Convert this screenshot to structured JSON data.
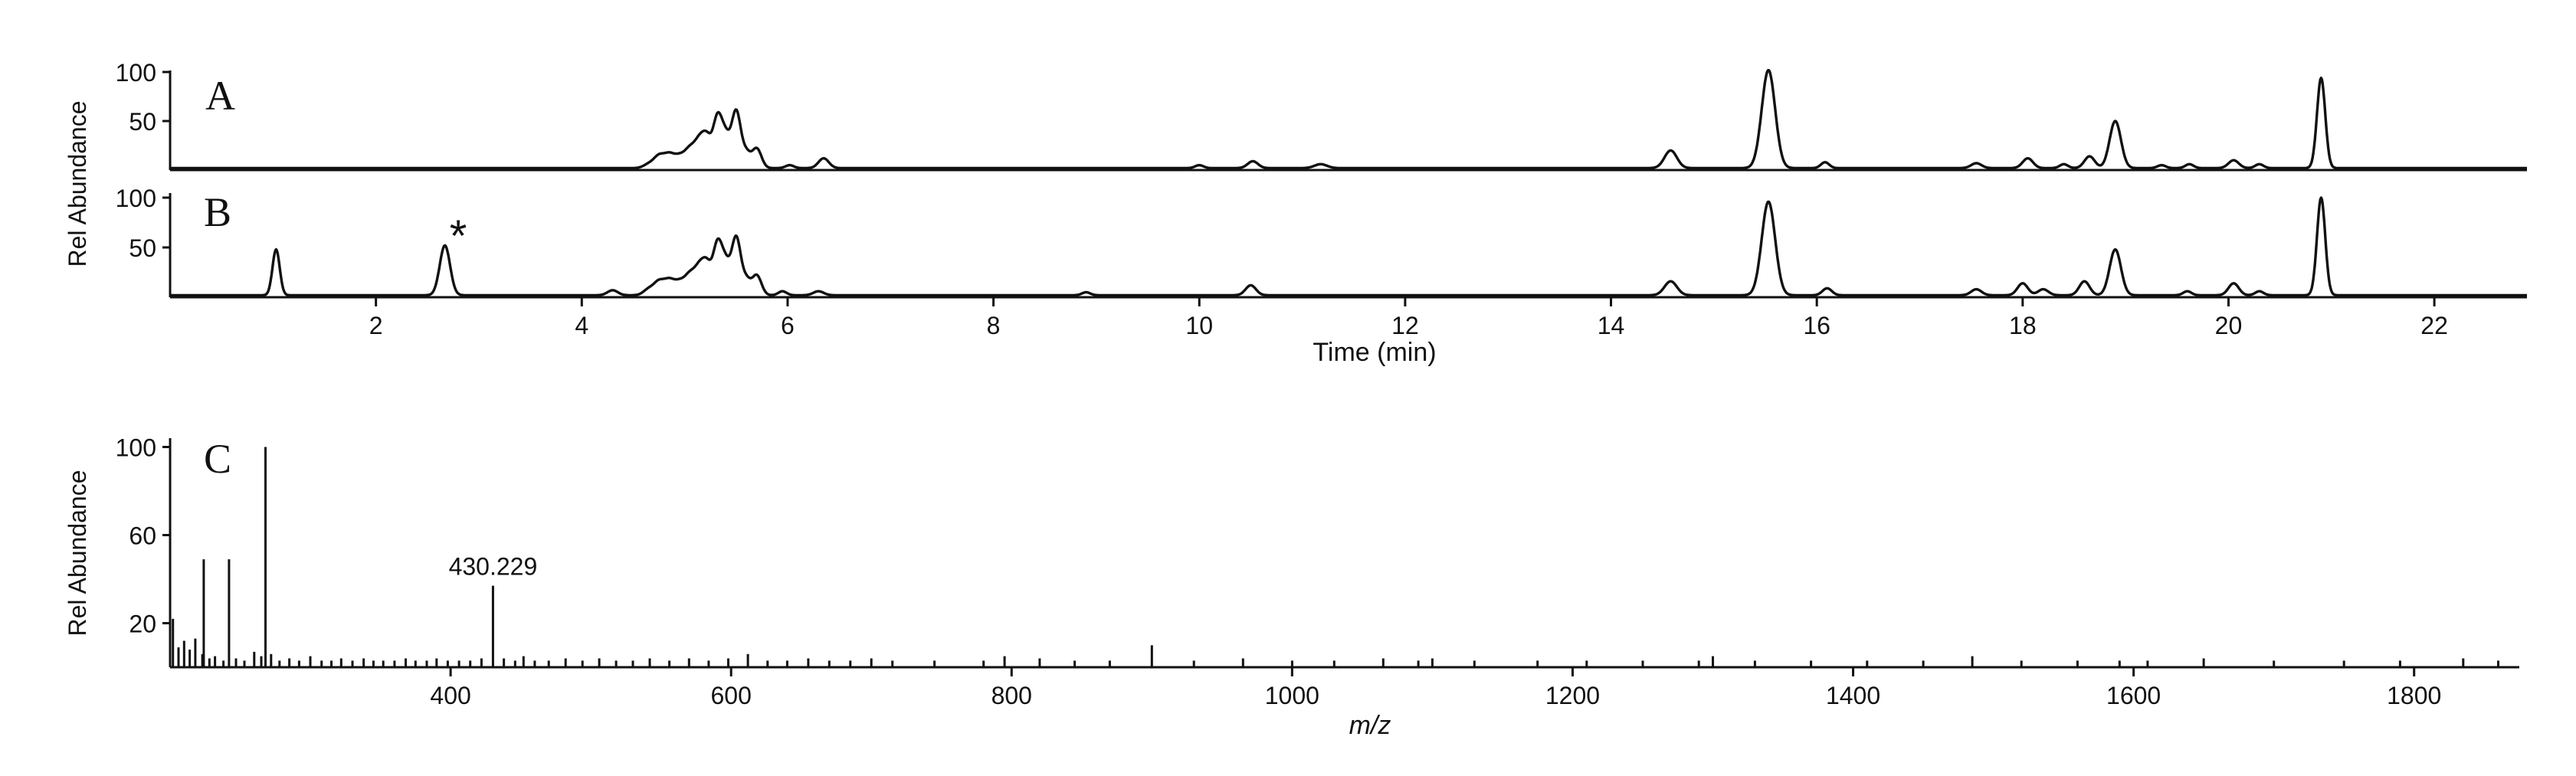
{
  "chart_data": [
    {
      "panel": "A",
      "type": "line",
      "ylabel": "Rel Abundance",
      "yticks": [
        50,
        100
      ],
      "xlim": [
        0,
        22.9
      ],
      "ylim": [
        0,
        105
      ],
      "series": [
        {
          "baseline": 2,
          "peaks": [
            {
              "x": 4.65,
              "y": 4,
              "w": 0.05
            },
            {
              "x": 4.75,
              "y": 12,
              "w": 0.05
            },
            {
              "x": 4.85,
              "y": 13,
              "w": 0.05
            },
            {
              "x": 4.95,
              "y": 11,
              "w": 0.05
            },
            {
              "x": 5.05,
              "y": 18,
              "w": 0.05
            },
            {
              "x": 5.15,
              "y": 28,
              "w": 0.05
            },
            {
              "x": 5.22,
              "y": 22,
              "w": 0.04
            },
            {
              "x": 5.32,
              "y": 52,
              "w": 0.045
            },
            {
              "x": 5.4,
              "y": 26,
              "w": 0.04
            },
            {
              "x": 5.5,
              "y": 58,
              "w": 0.045
            },
            {
              "x": 5.6,
              "y": 14,
              "w": 0.04
            },
            {
              "x": 5.7,
              "y": 20,
              "w": 0.045
            },
            {
              "x": 6.02,
              "y": 3,
              "w": 0.04
            },
            {
              "x": 6.35,
              "y": 10,
              "w": 0.05
            },
            {
              "x": 10.0,
              "y": 3,
              "w": 0.04
            },
            {
              "x": 10.52,
              "y": 7,
              "w": 0.05
            },
            {
              "x": 11.18,
              "y": 4,
              "w": 0.06
            },
            {
              "x": 14.58,
              "y": 18,
              "w": 0.06
            },
            {
              "x": 15.53,
              "y": 100,
              "w": 0.065
            },
            {
              "x": 16.08,
              "y": 6,
              "w": 0.04
            },
            {
              "x": 17.55,
              "y": 5,
              "w": 0.05
            },
            {
              "x": 18.05,
              "y": 10,
              "w": 0.05
            },
            {
              "x": 18.4,
              "y": 4,
              "w": 0.04
            },
            {
              "x": 18.65,
              "y": 12,
              "w": 0.05
            },
            {
              "x": 18.9,
              "y": 48,
              "w": 0.055
            },
            {
              "x": 19.35,
              "y": 3,
              "w": 0.04
            },
            {
              "x": 19.62,
              "y": 4,
              "w": 0.04
            },
            {
              "x": 20.05,
              "y": 8,
              "w": 0.05
            },
            {
              "x": 20.3,
              "y": 4,
              "w": 0.04
            },
            {
              "x": 20.9,
              "y": 92,
              "w": 0.04
            }
          ]
        }
      ]
    },
    {
      "panel": "B",
      "type": "line",
      "ylabel": "Rel Abundance",
      "yticks": [
        50,
        100
      ],
      "xlabel": "Time (min)",
      "xticks": [
        2,
        4,
        6,
        8,
        10,
        12,
        14,
        16,
        18,
        20,
        22
      ],
      "xlim": [
        0,
        22.9
      ],
      "ylim": [
        0,
        105
      ],
      "annotation": "*",
      "annotation_x": 2.67,
      "series": [
        {
          "baseline": 2,
          "peaks": [
            {
              "x": 1.03,
              "y": 46,
              "w": 0.035
            },
            {
              "x": 2.67,
              "y": 50,
              "w": 0.05
            },
            {
              "x": 4.3,
              "y": 5,
              "w": 0.05
            },
            {
              "x": 4.65,
              "y": 6,
              "w": 0.05
            },
            {
              "x": 4.75,
              "y": 13,
              "w": 0.05
            },
            {
              "x": 4.85,
              "y": 14,
              "w": 0.05
            },
            {
              "x": 4.95,
              "y": 12,
              "w": 0.05
            },
            {
              "x": 5.05,
              "y": 19,
              "w": 0.05
            },
            {
              "x": 5.15,
              "y": 28,
              "w": 0.05
            },
            {
              "x": 5.22,
              "y": 22,
              "w": 0.04
            },
            {
              "x": 5.32,
              "y": 52,
              "w": 0.045
            },
            {
              "x": 5.4,
              "y": 26,
              "w": 0.04
            },
            {
              "x": 5.5,
              "y": 58,
              "w": 0.045
            },
            {
              "x": 5.6,
              "y": 14,
              "w": 0.04
            },
            {
              "x": 5.7,
              "y": 20,
              "w": 0.045
            },
            {
              "x": 5.95,
              "y": 4,
              "w": 0.04
            },
            {
              "x": 6.3,
              "y": 4,
              "w": 0.05
            },
            {
              "x": 8.9,
              "y": 3,
              "w": 0.04
            },
            {
              "x": 10.5,
              "y": 10,
              "w": 0.05
            },
            {
              "x": 14.58,
              "y": 14,
              "w": 0.06
            },
            {
              "x": 15.53,
              "y": 94,
              "w": 0.065
            },
            {
              "x": 16.1,
              "y": 7,
              "w": 0.045
            },
            {
              "x": 17.55,
              "y": 6,
              "w": 0.05
            },
            {
              "x": 18.0,
              "y": 12,
              "w": 0.05
            },
            {
              "x": 18.2,
              "y": 6,
              "w": 0.05
            },
            {
              "x": 18.6,
              "y": 14,
              "w": 0.05
            },
            {
              "x": 18.9,
              "y": 46,
              "w": 0.055
            },
            {
              "x": 19.6,
              "y": 4,
              "w": 0.04
            },
            {
              "x": 20.05,
              "y": 12,
              "w": 0.05
            },
            {
              "x": 20.3,
              "y": 4,
              "w": 0.04
            },
            {
              "x": 20.9,
              "y": 98,
              "w": 0.04
            }
          ]
        }
      ]
    },
    {
      "panel": "C",
      "type": "bar",
      "ylabel": "Rel Abundance",
      "yticks": [
        20,
        60,
        100
      ],
      "xlabel": "m/z",
      "xticks": [
        400,
        600,
        800,
        1000,
        1200,
        1400,
        1600,
        1800
      ],
      "xlim": [
        200,
        1875
      ],
      "ylim": [
        0,
        104
      ],
      "annotation": "430.229",
      "annotation_x": 430.229,
      "annotation_y": 37,
      "peaks": [
        [
          202,
          22
        ],
        [
          206,
          9
        ],
        [
          210,
          12
        ],
        [
          214,
          8
        ],
        [
          218,
          13
        ],
        [
          223,
          6
        ],
        [
          228,
          4
        ],
        [
          224,
          49
        ],
        [
          232,
          5
        ],
        [
          238,
          3
        ],
        [
          242,
          49
        ],
        [
          247,
          4
        ],
        [
          253,
          3
        ],
        [
          260,
          7
        ],
        [
          265,
          5
        ],
        [
          268,
          100
        ],
        [
          272,
          6
        ],
        [
          278,
          3
        ],
        [
          285,
          4
        ],
        [
          292,
          3
        ],
        [
          300,
          5
        ],
        [
          308,
          3
        ],
        [
          315,
          3
        ],
        [
          322,
          4
        ],
        [
          330,
          3
        ],
        [
          338,
          4
        ],
        [
          345,
          3
        ],
        [
          352,
          3
        ],
        [
          360,
          3
        ],
        [
          368,
          4
        ],
        [
          375,
          3
        ],
        [
          383,
          3
        ],
        [
          390,
          4
        ],
        [
          398,
          3
        ],
        [
          406,
          3
        ],
        [
          414,
          3
        ],
        [
          422,
          4
        ],
        [
          430.229,
          37
        ],
        [
          438,
          4
        ],
        [
          446,
          3
        ],
        [
          452,
          5
        ],
        [
          460,
          3
        ],
        [
          470,
          3
        ],
        [
          482,
          4
        ],
        [
          494,
          3
        ],
        [
          506,
          4
        ],
        [
          518,
          3
        ],
        [
          530,
          3
        ],
        [
          542,
          4
        ],
        [
          556,
          3
        ],
        [
          570,
          4
        ],
        [
          584,
          3
        ],
        [
          598,
          4
        ],
        [
          612,
          6
        ],
        [
          626,
          3
        ],
        [
          640,
          3
        ],
        [
          655,
          4
        ],
        [
          670,
          3
        ],
        [
          685,
          3
        ],
        [
          700,
          4
        ],
        [
          715,
          3
        ],
        [
          745,
          3
        ],
        [
          780,
          3
        ],
        [
          795,
          5
        ],
        [
          820,
          4
        ],
        [
          845,
          3
        ],
        [
          870,
          3
        ],
        [
          900,
          10
        ],
        [
          930,
          3
        ],
        [
          965,
          4
        ],
        [
          1000,
          3
        ],
        [
          1030,
          3
        ],
        [
          1065,
          4
        ],
        [
          1090,
          3
        ],
        [
          1100,
          4
        ],
        [
          1130,
          3
        ],
        [
          1175,
          3
        ],
        [
          1210,
          3
        ],
        [
          1250,
          3
        ],
        [
          1290,
          3
        ],
        [
          1300,
          5
        ],
        [
          1330,
          3
        ],
        [
          1370,
          3
        ],
        [
          1410,
          3
        ],
        [
          1450,
          3
        ],
        [
          1485,
          5
        ],
        [
          1520,
          3
        ],
        [
          1560,
          3
        ],
        [
          1590,
          3
        ],
        [
          1610,
          3
        ],
        [
          1650,
          4
        ],
        [
          1700,
          3
        ],
        [
          1750,
          3
        ],
        [
          1790,
          3
        ],
        [
          1835,
          4
        ],
        [
          1860,
          3
        ]
      ]
    }
  ]
}
